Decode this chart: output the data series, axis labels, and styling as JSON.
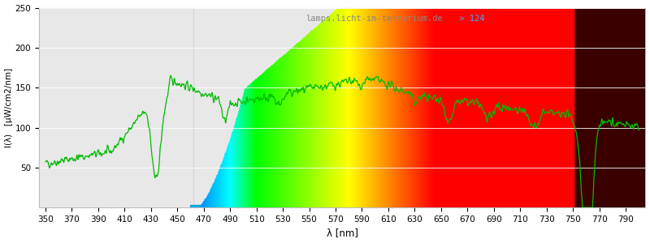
{
  "xlim": [
    345,
    805
  ],
  "ylim": [
    0,
    250
  ],
  "yticks": [
    50,
    100,
    150,
    200,
    250
  ],
  "xticks": [
    350,
    370,
    390,
    410,
    430,
    450,
    470,
    490,
    510,
    530,
    550,
    570,
    590,
    610,
    630,
    650,
    670,
    690,
    710,
    730,
    750,
    770,
    790
  ],
  "xlabel": "λ [nm]",
  "ylabel": "I(λ)   [μW/cm2/nm]",
  "watermark": "lamps.licht-im-terrarium.de",
  "watermark_suffix": " > 124",
  "watermark_color": "#888888",
  "watermark_suffix_color": "#44aaff",
  "background_gray": "#e8e8e8",
  "background_white": "#ffffff",
  "line_color": "#00bb00",
  "line_width": 0.9,
  "ir_color": "#3a0000",
  "figsize": [
    8.0,
    3.0
  ],
  "dpi": 100
}
